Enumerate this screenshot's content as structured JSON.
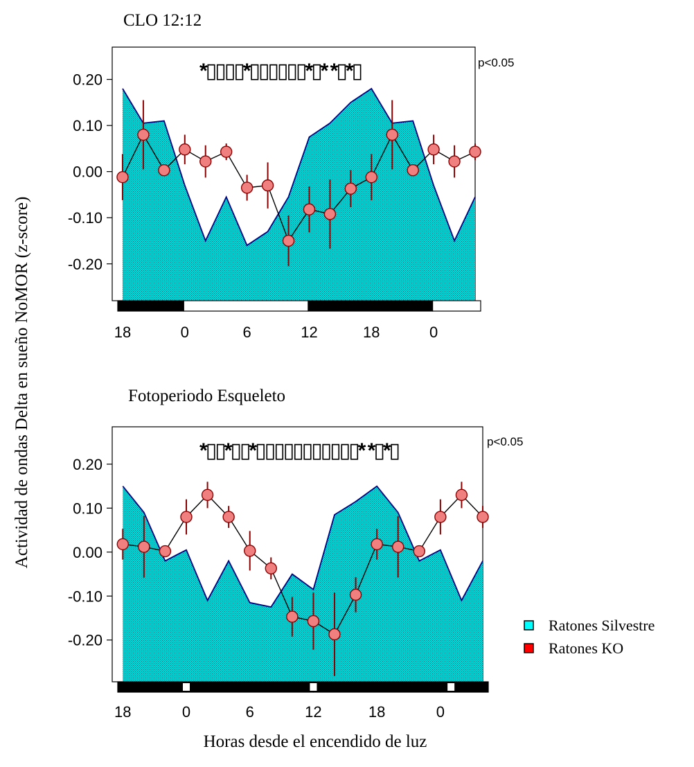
{
  "figure": {
    "ylabel": "Actividad de ondas Delta en sueño NoMOR (z-score)",
    "xlabel": "Horas desde el encendido de luz",
    "legend": [
      {
        "label": "Ratones Silvestre",
        "color": "#00ffff"
      },
      {
        "label": "Ratones KO",
        "color": "#ff0000"
      }
    ],
    "colors": {
      "area_fill": "#00e5e5",
      "area_edge": "#000080",
      "marker_fill": "#f08080",
      "error_bar": "#8b0000",
      "line": "#000000"
    }
  },
  "chart_data": [
    {
      "type": "area",
      "title": "CLO 12:12",
      "significance_label": "p<0.05",
      "significance_marks": "*▯▯▯▯*▯▯▯▯▯▯*▯*  *▯*▯",
      "yticks": [
        "0.20",
        "0.10",
        "0.00",
        "-0.10",
        "-0.20"
      ],
      "ylim": [
        -0.28,
        0.27
      ],
      "xticklabels": [
        "18",
        "0",
        "6",
        "12",
        "18",
        "0"
      ],
      "xlim": [
        -7,
        28
      ],
      "photoperiod": [
        {
          "from": -7,
          "to": -0.1,
          "state": "dark"
        },
        {
          "from": -0.1,
          "to": 11.9,
          "state": "light"
        },
        {
          "from": 11.9,
          "to": 23.9,
          "state": "dark"
        },
        {
          "from": 23.9,
          "to": 28.6,
          "state": "light"
        }
      ],
      "series": [
        {
          "name": "Ratones Silvestre",
          "kind": "area",
          "x": [
            -6,
            -4,
            -2,
            0,
            2,
            4,
            6,
            8,
            10,
            12,
            14,
            16,
            18,
            20,
            22,
            24,
            26,
            28
          ],
          "values": [
            0.18,
            0.105,
            0.11,
            -0.03,
            -0.15,
            -0.055,
            -0.16,
            -0.13,
            -0.055,
            0.075,
            0.105,
            0.15,
            0.18,
            0.105,
            0.11,
            -0.03,
            -0.15,
            -0.055
          ]
        },
        {
          "name": "Ratones KO",
          "kind": "line-markers",
          "x": [
            -6,
            -4,
            -2,
            0,
            2,
            4,
            6,
            8,
            10,
            12,
            14,
            16,
            18,
            20,
            22,
            24,
            26,
            28
          ],
          "values": [
            -0.012,
            0.08,
            0.003,
            0.048,
            0.022,
            0.043,
            -0.035,
            -0.03,
            -0.15,
            -0.082,
            -0.092,
            -0.037,
            -0.012,
            0.08,
            0.003,
            0.048,
            0.022,
            0.043
          ],
          "errors": [
            0.05,
            0.075,
            0.006,
            0.032,
            0.035,
            0.018,
            0.028,
            0.05,
            0.055,
            0.05,
            0.075,
            0.04,
            0.05,
            0.075,
            0.006,
            0.032,
            0.035,
            0.018
          ]
        }
      ]
    },
    {
      "type": "area",
      "title": "Fotoperiodo Esqueleto",
      "significance_label": "p<0.05",
      "significance_marks": "*▯▯*▯▯*▯▯▯▯▯▯▯▯▯▯▯*  *▯*▯",
      "yticks": [
        "0.20",
        "0.10",
        "0.00",
        "-0.10",
        "-0.20"
      ],
      "ylim": [
        -0.295,
        0.285
      ],
      "xticklabels": [
        "18",
        "0",
        "6",
        "12",
        "18",
        "0"
      ],
      "xlim": [
        -7,
        28
      ],
      "photoperiod": [
        {
          "from": -7,
          "to": 0,
          "state": "dark"
        },
        {
          "from": 0,
          "to": 12,
          "state": "dark"
        },
        {
          "from": 12,
          "to": 24,
          "state": "dark"
        },
        {
          "from": 24,
          "to": 28.6,
          "state": "dark"
        }
      ],
      "skeleton_pulses": [
        0,
        12,
        25
      ],
      "series": [
        {
          "name": "Ratones Silvestre",
          "kind": "area",
          "x": [
            -6,
            -4,
            -2,
            0,
            2,
            4,
            6,
            8,
            10,
            12,
            14,
            16,
            18,
            20,
            22,
            24,
            26,
            28
          ],
          "values": [
            0.15,
            0.09,
            -0.02,
            0.005,
            -0.11,
            -0.02,
            -0.115,
            -0.125,
            -0.05,
            -0.085,
            0.085,
            0.115,
            0.15,
            0.09,
            -0.02,
            0.005,
            -0.11,
            -0.02
          ]
        },
        {
          "name": "Ratones KO",
          "kind": "line-markers",
          "x": [
            -6,
            -4,
            -2,
            0,
            2,
            4,
            6,
            8,
            10,
            12,
            14,
            16,
            18,
            20,
            22,
            24,
            26,
            28
          ],
          "values": [
            0.018,
            0.012,
            0.002,
            0.08,
            0.13,
            0.08,
            0.003,
            -0.037,
            -0.147,
            -0.157,
            -0.187,
            -0.097,
            0.018,
            0.012,
            0.002,
            0.08,
            0.13,
            0.08
          ],
          "errors": [
            0.035,
            0.07,
            0.006,
            0.04,
            0.03,
            0.025,
            0.045,
            0.025,
            0.045,
            0.065,
            0.095,
            0.04,
            0.035,
            0.07,
            0.006,
            0.04,
            0.03,
            0.025
          ]
        }
      ]
    }
  ]
}
